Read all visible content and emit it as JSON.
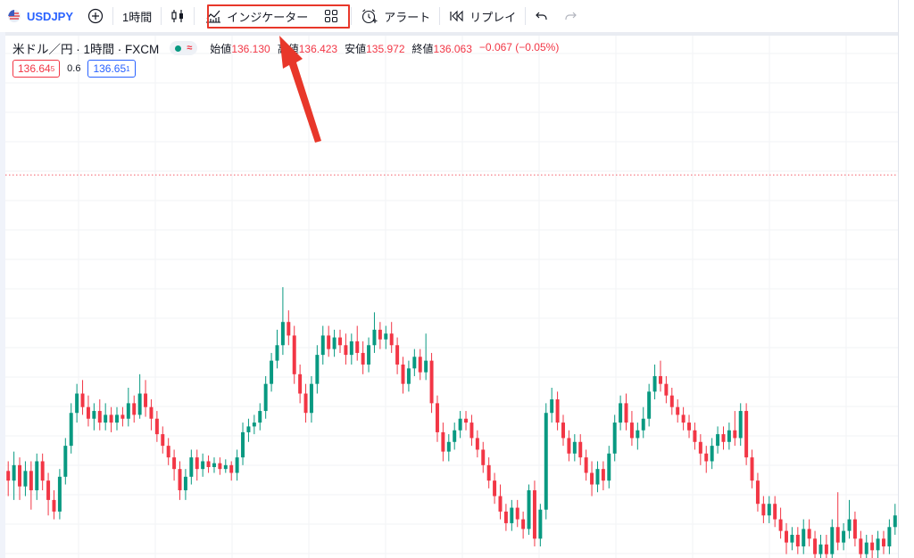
{
  "toolbar": {
    "symbol": "USDJPY",
    "interval": "1時間",
    "indicators_label": "インジケーター",
    "alert_label": "アラート",
    "replay_label": "リプレイ"
  },
  "icons": [
    "us-flag-icon",
    "add-symbol-icon",
    "candles-icon",
    "indicators-icon",
    "templates-grid-icon",
    "alert-clock-icon",
    "replay-icon",
    "undo-icon",
    "redo-icon"
  ],
  "legend": {
    "title": "米ドル／円 · 1時間 · FXCM",
    "market_symbol": "≈",
    "open_label": "始値",
    "open": "136.130",
    "high_label": "高値",
    "high": "136.423",
    "low_label": "安値",
    "low": "135.972",
    "close_label": "終値",
    "close": "136.063",
    "change": "−0.067 (−0.05%)",
    "sell_price": "136.64",
    "sell_sup": "5",
    "spread": "0.6",
    "buy_price": "136.65",
    "buy_sup": "1"
  },
  "colors": {
    "up": "#089981",
    "down": "#f23645",
    "accent": "#2962ff",
    "annotation": "#e8372a"
  },
  "chart_data": {
    "type": "candlestick",
    "y_range": [
      135.2,
      137.9
    ],
    "grid": true,
    "price_line": 137.18,
    "candles": [
      [
        135.65,
        135.6,
        135.7,
        135.52
      ],
      [
        135.6,
        135.68,
        135.75,
        135.5
      ],
      [
        135.68,
        135.57,
        135.72,
        135.5
      ],
      [
        135.57,
        135.65,
        135.7,
        135.52
      ],
      [
        135.65,
        135.55,
        135.7,
        135.45
      ],
      [
        135.55,
        135.7,
        135.74,
        135.5
      ],
      [
        135.7,
        135.6,
        135.74,
        135.55
      ],
      [
        135.6,
        135.5,
        135.64,
        135.42
      ],
      [
        135.5,
        135.44,
        135.55,
        135.4
      ],
      [
        135.44,
        135.62,
        135.66,
        135.4
      ],
      [
        135.62,
        135.78,
        135.82,
        135.58
      ],
      [
        135.78,
        135.95,
        136.0,
        135.74
      ],
      [
        135.95,
        136.05,
        136.1,
        135.9
      ],
      [
        136.05,
        135.98,
        136.12,
        135.94
      ],
      [
        135.98,
        135.92,
        136.04,
        135.88
      ],
      [
        135.92,
        135.96,
        136.0,
        135.86
      ],
      [
        135.96,
        135.9,
        136.02,
        135.86
      ],
      [
        135.9,
        135.94,
        136.0,
        135.86
      ],
      [
        135.94,
        135.9,
        135.98,
        135.85
      ],
      [
        135.9,
        135.94,
        135.98,
        135.86
      ],
      [
        135.94,
        135.92,
        135.98,
        135.88
      ],
      [
        135.92,
        136.0,
        136.08,
        135.88
      ],
      [
        136.0,
        135.94,
        136.04,
        135.9
      ],
      [
        135.94,
        136.05,
        136.15,
        135.92
      ],
      [
        136.05,
        135.98,
        136.12,
        135.93
      ],
      [
        135.98,
        135.92,
        136.02,
        135.86
      ],
      [
        135.92,
        135.84,
        135.96,
        135.8
      ],
      [
        135.84,
        135.78,
        135.88,
        135.74
      ],
      [
        135.78,
        135.72,
        135.82,
        135.68
      ],
      [
        135.72,
        135.66,
        135.76,
        135.6
      ],
      [
        135.66,
        135.55,
        135.7,
        135.5
      ],
      [
        135.55,
        135.62,
        135.66,
        135.5
      ],
      [
        135.62,
        135.72,
        135.76,
        135.58
      ],
      [
        135.72,
        135.66,
        135.76,
        135.6
      ],
      [
        135.66,
        135.7,
        135.74,
        135.62
      ],
      [
        135.7,
        135.67,
        135.73,
        135.64
      ],
      [
        135.67,
        135.69,
        135.72,
        135.64
      ],
      [
        135.69,
        135.66,
        135.72,
        135.63
      ],
      [
        135.66,
        135.68,
        135.71,
        135.64
      ],
      [
        135.68,
        135.64,
        135.7,
        135.6
      ],
      [
        135.64,
        135.72,
        135.76,
        135.6
      ],
      [
        135.72,
        135.85,
        135.9,
        135.68
      ],
      [
        135.85,
        135.88,
        135.92,
        135.8
      ],
      [
        135.88,
        135.9,
        135.94,
        135.84
      ],
      [
        135.9,
        135.96,
        136.0,
        135.86
      ],
      [
        135.96,
        136.1,
        136.14,
        135.92
      ],
      [
        136.1,
        136.22,
        136.26,
        136.06
      ],
      [
        136.22,
        136.3,
        136.38,
        136.18
      ],
      [
        136.3,
        136.42,
        136.6,
        136.25
      ],
      [
        136.42,
        136.35,
        136.48,
        136.3
      ],
      [
        136.35,
        136.15,
        136.4,
        136.1
      ],
      [
        136.15,
        136.05,
        136.2,
        136.0
      ],
      [
        136.05,
        135.95,
        136.1,
        135.9
      ],
      [
        135.95,
        136.1,
        136.14,
        135.9
      ],
      [
        136.1,
        136.25,
        136.3,
        136.05
      ],
      [
        136.25,
        136.35,
        136.4,
        136.2
      ],
      [
        136.35,
        136.28,
        136.4,
        136.24
      ],
      [
        136.28,
        136.34,
        136.38,
        136.24
      ],
      [
        136.34,
        136.3,
        136.38,
        136.26
      ],
      [
        136.3,
        136.25,
        136.36,
        136.2
      ],
      [
        136.25,
        136.32,
        136.36,
        136.2
      ],
      [
        136.32,
        136.26,
        136.4,
        136.22
      ],
      [
        136.26,
        136.2,
        136.32,
        136.15
      ],
      [
        136.2,
        136.3,
        136.34,
        136.16
      ],
      [
        136.3,
        136.38,
        136.47,
        136.26
      ],
      [
        136.38,
        136.33,
        136.42,
        136.28
      ],
      [
        136.33,
        136.36,
        136.4,
        136.28
      ],
      [
        136.36,
        136.3,
        136.42,
        136.26
      ],
      [
        136.3,
        136.2,
        136.34,
        136.15
      ],
      [
        136.2,
        136.1,
        136.24,
        136.05
      ],
      [
        136.1,
        136.18,
        136.22,
        136.06
      ],
      [
        136.18,
        136.24,
        136.28,
        136.14
      ],
      [
        136.24,
        136.16,
        136.28,
        136.12
      ],
      [
        136.16,
        136.22,
        136.36,
        136.12
      ],
      [
        136.22,
        136.0,
        136.26,
        135.95
      ],
      [
        136.0,
        135.85,
        136.04,
        135.8
      ],
      [
        135.85,
        135.75,
        135.9,
        135.7
      ],
      [
        135.75,
        135.8,
        135.84,
        135.7
      ],
      [
        135.8,
        135.86,
        135.9,
        135.76
      ],
      [
        135.86,
        135.92,
        135.96,
        135.82
      ],
      [
        135.92,
        135.9,
        135.96,
        135.86
      ],
      [
        135.9,
        135.82,
        135.94,
        135.78
      ],
      [
        135.82,
        135.76,
        135.86,
        135.72
      ],
      [
        135.76,
        135.68,
        135.8,
        135.64
      ],
      [
        135.68,
        135.6,
        135.72,
        135.56
      ],
      [
        135.6,
        135.52,
        135.64,
        135.48
      ],
      [
        135.52,
        135.44,
        135.58,
        135.4
      ],
      [
        135.44,
        135.38,
        135.48,
        135.34
      ],
      [
        135.38,
        135.46,
        135.5,
        135.34
      ],
      [
        135.46,
        135.4,
        135.5,
        135.36
      ],
      [
        135.4,
        135.35,
        135.44,
        135.3
      ],
      [
        135.35,
        135.55,
        135.58,
        135.32
      ],
      [
        135.55,
        135.3,
        135.6,
        135.26
      ],
      [
        135.3,
        135.45,
        135.48,
        135.26
      ],
      [
        135.45,
        135.95,
        136.0,
        135.4
      ],
      [
        135.95,
        136.02,
        136.08,
        135.9
      ],
      [
        136.02,
        135.9,
        136.06,
        135.86
      ],
      [
        135.9,
        135.82,
        135.94,
        135.78
      ],
      [
        135.82,
        135.74,
        135.86,
        135.7
      ],
      [
        135.74,
        135.8,
        135.84,
        135.7
      ],
      [
        135.8,
        135.72,
        135.84,
        135.68
      ],
      [
        135.72,
        135.64,
        135.76,
        135.6
      ],
      [
        135.64,
        135.58,
        135.7,
        135.52
      ],
      [
        135.58,
        135.66,
        135.7,
        135.54
      ],
      [
        135.66,
        135.6,
        135.7,
        135.55
      ],
      [
        135.6,
        135.74,
        135.78,
        135.56
      ],
      [
        135.74,
        135.9,
        135.94,
        135.7
      ],
      [
        135.9,
        136.0,
        136.04,
        135.86
      ],
      [
        136.0,
        135.9,
        136.05,
        135.86
      ],
      [
        135.9,
        135.82,
        135.96,
        135.78
      ],
      [
        135.82,
        135.86,
        135.9,
        135.76
      ],
      [
        135.86,
        135.92,
        135.98,
        135.82
      ],
      [
        135.92,
        136.06,
        136.1,
        135.88
      ],
      [
        136.06,
        136.14,
        136.2,
        136.02
      ],
      [
        136.14,
        136.1,
        136.22,
        136.06
      ],
      [
        136.1,
        136.04,
        136.14,
        136.0
      ],
      [
        136.04,
        135.98,
        136.08,
        135.94
      ],
      [
        135.98,
        135.94,
        136.02,
        135.9
      ],
      [
        135.94,
        135.9,
        135.98,
        135.86
      ],
      [
        135.9,
        135.86,
        135.94,
        135.82
      ],
      [
        135.86,
        135.8,
        135.9,
        135.76
      ],
      [
        135.8,
        135.74,
        135.84,
        135.68
      ],
      [
        135.74,
        135.7,
        135.78,
        135.64
      ],
      [
        135.7,
        135.78,
        135.82,
        135.66
      ],
      [
        135.78,
        135.84,
        135.88,
        135.74
      ],
      [
        135.84,
        135.8,
        135.88,
        135.76
      ],
      [
        135.8,
        135.86,
        135.9,
        135.76
      ],
      [
        135.86,
        135.82,
        135.96,
        135.78
      ],
      [
        135.82,
        135.96,
        136.0,
        135.78
      ],
      [
        135.96,
        135.72,
        136.0,
        135.68
      ],
      [
        135.72,
        135.6,
        135.76,
        135.56
      ],
      [
        135.6,
        135.48,
        135.64,
        135.44
      ],
      [
        135.48,
        135.42,
        135.52,
        135.38
      ],
      [
        135.42,
        135.48,
        135.52,
        135.38
      ],
      [
        135.48,
        135.4,
        135.52,
        135.36
      ],
      [
        135.4,
        135.34,
        135.46,
        135.3
      ],
      [
        135.34,
        135.28,
        135.38,
        135.22
      ],
      [
        135.28,
        135.32,
        135.36,
        135.24
      ],
      [
        135.32,
        135.26,
        135.36,
        135.22
      ],
      [
        135.26,
        135.35,
        135.4,
        135.22
      ],
      [
        135.35,
        135.3,
        135.4,
        135.26
      ],
      [
        135.3,
        135.22,
        135.34,
        135.18
      ],
      [
        135.22,
        135.27,
        135.32,
        135.18
      ],
      [
        135.27,
        135.22,
        135.32,
        135.18
      ],
      [
        135.22,
        135.36,
        135.4,
        135.2
      ],
      [
        135.36,
        135.28,
        135.54,
        135.24
      ],
      [
        135.28,
        135.34,
        135.38,
        135.24
      ],
      [
        135.34,
        135.4,
        135.5,
        135.3
      ],
      [
        135.4,
        135.3,
        135.44,
        135.26
      ],
      [
        135.3,
        135.22,
        135.34,
        135.18
      ],
      [
        135.22,
        135.28,
        135.32,
        135.18
      ],
      [
        135.28,
        135.24,
        135.32,
        135.2
      ],
      [
        135.24,
        135.3,
        135.34,
        135.2
      ],
      [
        135.3,
        135.26,
        135.34,
        135.22
      ],
      [
        135.26,
        135.36,
        135.4,
        135.22
      ],
      [
        135.36,
        135.42,
        135.48,
        135.32
      ]
    ]
  }
}
